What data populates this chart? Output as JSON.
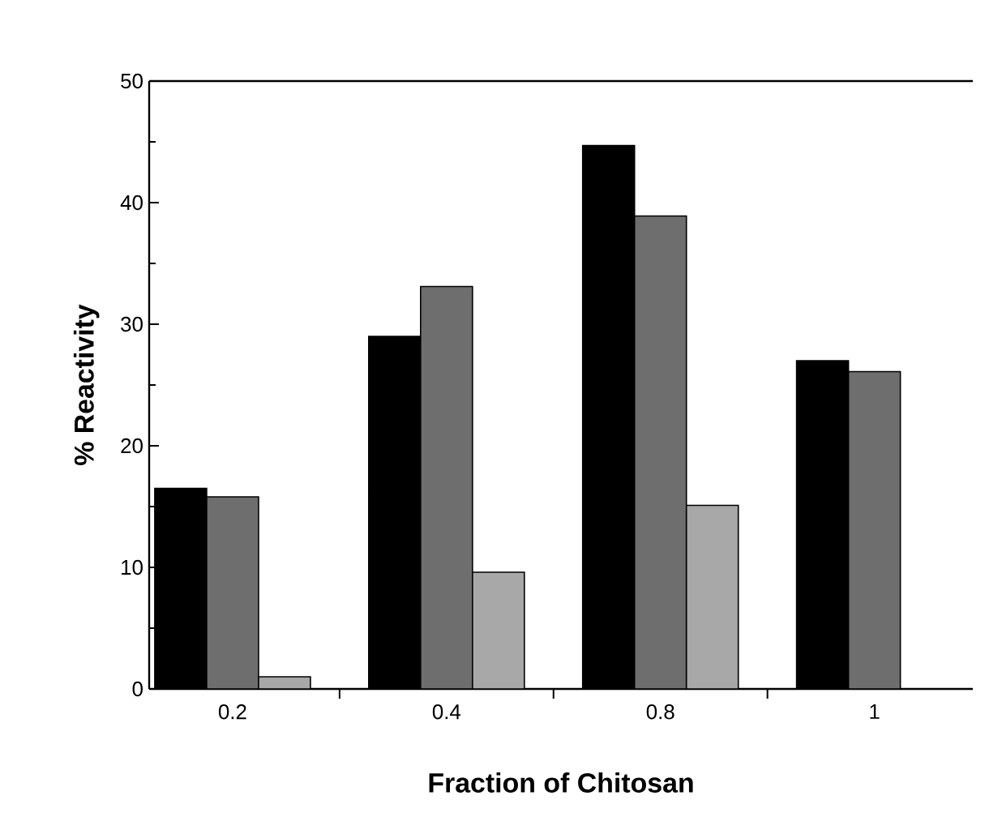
{
  "chart_data": {
    "type": "bar",
    "xlabel": "Fraction of Chitosan",
    "ylabel": "% Reactivity",
    "categories": [
      "0.2",
      "0.4",
      "0.8",
      "1"
    ],
    "series": [
      {
        "color": "#000000",
        "values": [
          16.5,
          29.0,
          44.7,
          27.0
        ]
      },
      {
        "color": "#6e6e6e",
        "values": [
          15.8,
          33.1,
          38.9,
          26.1
        ]
      },
      {
        "color": "#a8a8a8",
        "values": [
          1.0,
          9.6,
          15.1,
          null
        ]
      }
    ],
    "ylim": [
      0,
      50
    ],
    "yticks": [
      0,
      10,
      20,
      30,
      40,
      50
    ]
  }
}
